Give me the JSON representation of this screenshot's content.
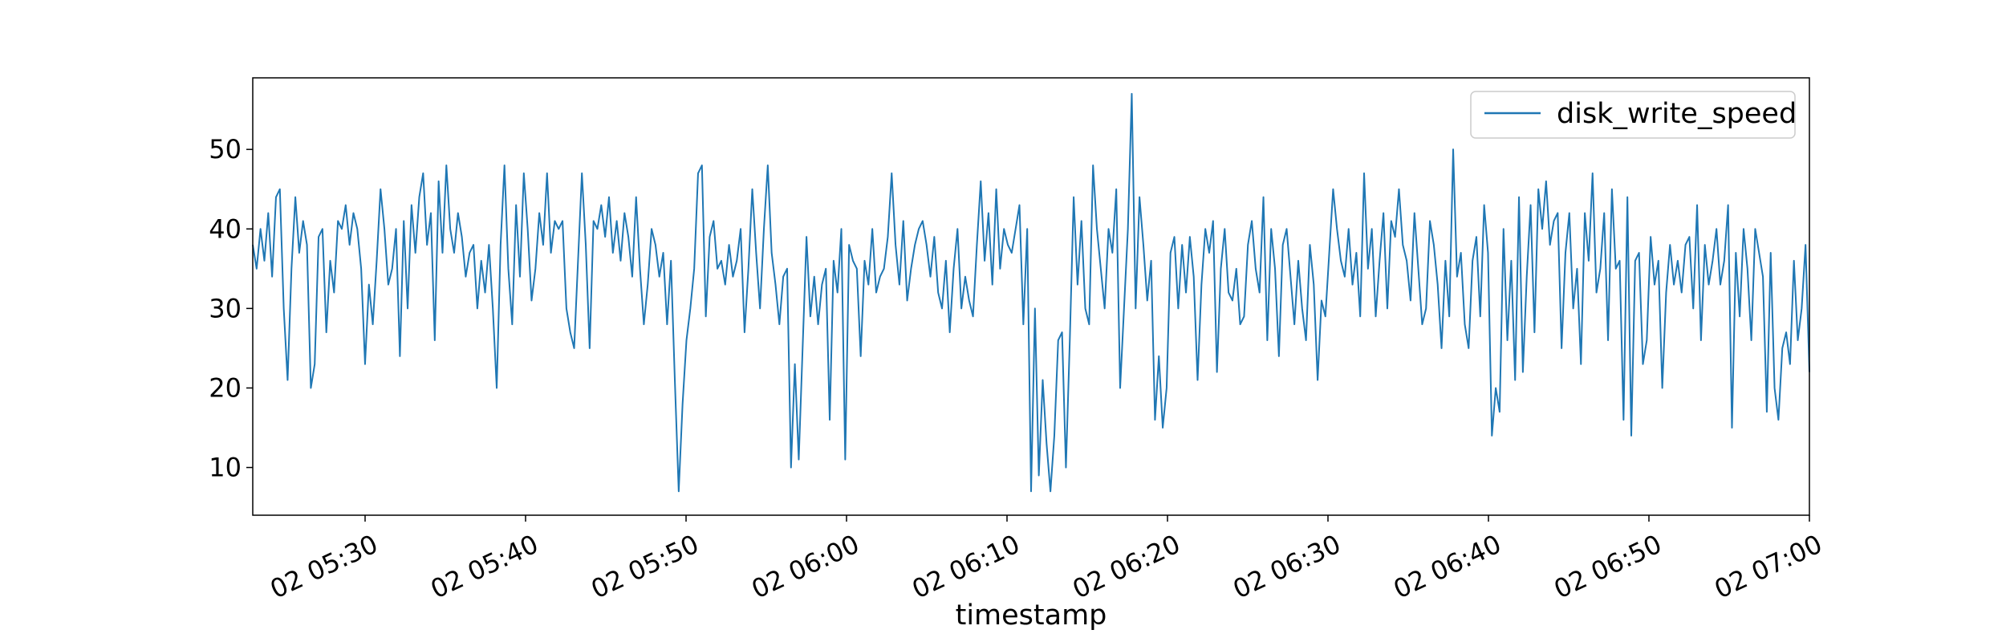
{
  "chart_data": {
    "type": "line",
    "title": "",
    "xlabel": "timestamp",
    "ylabel": "",
    "grid": false,
    "legend_placement": "top-right",
    "x_start": "02 05:23",
    "x_end": "02 07:00",
    "xlim": [
      "02 05:23",
      "02 07:00"
    ],
    "ylim": [
      4,
      59
    ],
    "yticks": [
      10,
      20,
      30,
      40,
      50
    ],
    "xticks": [
      "02 05:30",
      "02 05:40",
      "02 05:50",
      "02 06:00",
      "02 06:10",
      "02 06:20",
      "02 06:30",
      "02 06:40",
      "02 06:50",
      "02 07:00"
    ],
    "series": [
      {
        "name": "disk_write_speed",
        "color": "#1f77b4",
        "values": [
          38,
          35,
          40,
          36,
          42,
          34,
          44,
          45,
          30,
          21,
          35,
          44,
          37,
          41,
          38,
          20,
          23,
          39,
          40,
          27,
          36,
          32,
          41,
          40,
          43,
          38,
          42,
          40,
          35,
          23,
          33,
          28,
          36,
          45,
          40,
          33,
          35,
          40,
          24,
          41,
          30,
          43,
          37,
          44,
          47,
          38,
          42,
          26,
          46,
          37,
          48,
          40,
          37,
          42,
          39,
          34,
          37,
          38,
          30,
          36,
          32,
          38,
          30,
          20,
          38,
          48,
          35,
          28,
          43,
          34,
          47,
          40,
          31,
          35,
          42,
          38,
          47,
          37,
          41,
          40,
          41,
          30,
          27,
          25,
          36,
          47,
          38,
          25,
          41,
          40,
          43,
          39,
          44,
          37,
          41,
          36,
          42,
          39,
          34,
          44,
          35,
          28,
          33,
          40,
          38,
          34,
          37,
          28,
          36,
          21,
          7,
          18,
          26,
          30,
          35,
          47,
          48,
          29,
          39,
          41,
          35,
          36,
          33,
          38,
          34,
          36,
          40,
          27,
          35,
          45,
          37,
          30,
          40,
          48,
          37,
          33,
          28,
          34,
          35,
          10,
          23,
          11,
          25,
          39,
          29,
          34,
          28,
          33,
          35,
          16,
          36,
          32,
          40,
          11,
          38,
          36,
          35,
          24,
          36,
          33,
          40,
          32,
          34,
          35,
          39,
          47,
          38,
          33,
          41,
          31,
          35,
          38,
          40,
          41,
          38,
          34,
          39,
          32,
          30,
          36,
          27,
          35,
          40,
          30,
          34,
          31,
          29,
          38,
          46,
          36,
          42,
          33,
          45,
          35,
          40,
          38,
          37,
          40,
          43,
          28,
          40,
          7,
          30,
          9,
          21,
          13,
          7,
          14,
          26,
          27,
          10,
          26,
          44,
          33,
          41,
          30,
          28,
          48,
          40,
          35,
          30,
          40,
          37,
          45,
          20,
          30,
          40,
          57,
          30,
          44,
          38,
          31,
          36,
          16,
          24,
          15,
          20,
          37,
          39,
          30,
          38,
          32,
          39,
          34,
          21,
          33,
          40,
          37,
          41,
          22,
          35,
          40,
          32,
          31,
          35,
          28,
          29,
          38,
          41,
          35,
          32,
          44,
          26,
          40,
          35,
          24,
          38,
          40,
          34,
          28,
          36,
          30,
          26,
          38,
          33,
          21,
          31,
          29,
          37,
          45,
          40,
          36,
          34,
          40,
          33,
          37,
          29,
          47,
          35,
          40,
          29,
          36,
          42,
          30,
          41,
          39,
          45,
          38,
          36,
          31,
          42,
          35,
          28,
          30,
          41,
          38,
          33,
          25,
          36,
          29,
          50,
          34,
          37,
          28,
          25,
          36,
          39,
          29,
          43,
          37,
          14,
          20,
          17,
          40,
          26,
          36,
          21,
          44,
          22,
          34,
          43,
          27,
          45,
          40,
          46,
          38,
          41,
          42,
          25,
          37,
          42,
          30,
          35,
          23,
          42,
          36,
          47,
          32,
          35,
          42,
          26,
          45,
          35,
          36,
          16,
          44,
          14,
          36,
          37,
          23,
          26,
          39,
          33,
          36,
          20,
          32,
          38,
          33,
          36,
          32,
          38,
          39,
          30,
          43,
          26,
          38,
          33,
          36,
          40,
          33,
          36,
          43,
          15,
          37,
          29,
          40,
          35,
          26,
          40,
          37,
          34,
          17,
          37,
          20,
          16,
          25,
          27,
          23,
          36,
          26,
          30,
          38,
          22
        ]
      }
    ]
  }
}
